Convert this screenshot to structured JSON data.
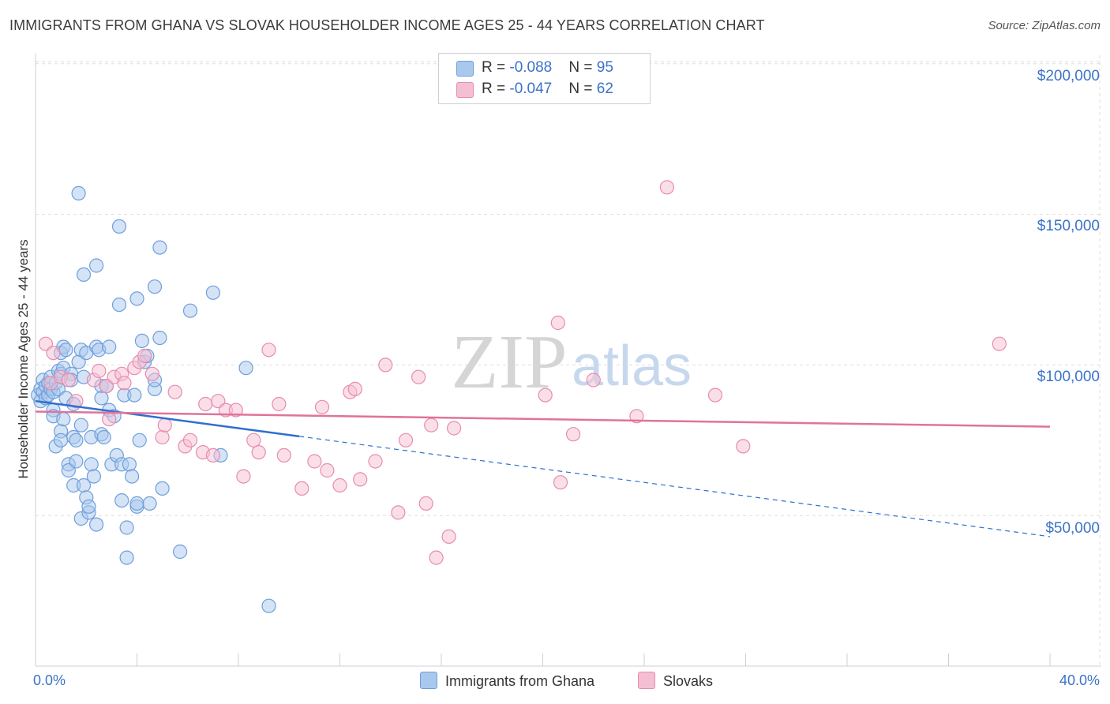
{
  "title": "IMMIGRANTS FROM GHANA VS SLOVAK HOUSEHOLDER INCOME AGES 25 - 44 YEARS CORRELATION CHART",
  "source": "Source: ZipAtlas.com",
  "watermark": {
    "zip": "ZIP",
    "atlas": "atlas"
  },
  "legend_top": {
    "rows": [
      {
        "r_label": "R = ",
        "r_value": "-0.088",
        "n_label": "N = ",
        "n_value": "95"
      },
      {
        "r_label": "R = ",
        "r_value": "-0.047",
        "n_label": "N = ",
        "n_value": "62"
      }
    ]
  },
  "legend_bottom": {
    "series1": "Immigrants from Ghana",
    "series2": "Slovaks"
  },
  "colors": {
    "blue_fill": "#a9c8ee",
    "blue_stroke": "#6f9fdb",
    "blue_line": "#2e6fd0",
    "pink_fill": "#f5bfd3",
    "pink_stroke": "#e88bae",
    "pink_line": "#e0739b",
    "tick_text": "#3b73c8",
    "grid": "#dddddd"
  },
  "chart_data": {
    "type": "scatter",
    "title": "IMMIGRANTS FROM GHANA VS SLOVAK HOUSEHOLDER INCOME AGES 25 - 44 YEARS CORRELATION CHART",
    "xlabel": "",
    "ylabel": "Householder Income Ages 25 - 44 years",
    "xlim": [
      0,
      40
    ],
    "ylim": [
      0,
      210000
    ],
    "x_tick_labels": [
      "0.0%",
      "40.0%"
    ],
    "y_ticks": [
      50000,
      100000,
      150000,
      200000
    ],
    "y_tick_labels": [
      "$50,000",
      "$100,000",
      "$150,000",
      "$200,000"
    ],
    "grid": true,
    "series": [
      {
        "name": "Immigrants from Ghana",
        "r": -0.088,
        "n": 95,
        "trend": {
          "x": [
            0,
            40
          ],
          "y": [
            88000,
            43000
          ],
          "solid_until_x": 10.4
        },
        "points": [
          [
            0.1,
            90000
          ],
          [
            0.2,
            92000
          ],
          [
            0.2,
            88000
          ],
          [
            0.3,
            95000
          ],
          [
            0.3,
            91000
          ],
          [
            0.4,
            93000
          ],
          [
            0.4,
            89000
          ],
          [
            0.5,
            94000
          ],
          [
            0.5,
            90000
          ],
          [
            0.6,
            92000
          ],
          [
            0.6,
            96000
          ],
          [
            0.7,
            91000
          ],
          [
            0.7,
            85000
          ],
          [
            0.7,
            83000
          ],
          [
            0.8,
            73000
          ],
          [
            0.8,
            94000
          ],
          [
            0.9,
            98000
          ],
          [
            0.9,
            92000
          ],
          [
            1.0,
            104000
          ],
          [
            1.0,
            97000
          ],
          [
            1.0,
            78000
          ],
          [
            1.0,
            75000
          ],
          [
            1.1,
            106000
          ],
          [
            1.1,
            99000
          ],
          [
            1.1,
            82000
          ],
          [
            1.2,
            105000
          ],
          [
            1.2,
            89000
          ],
          [
            1.3,
            67000
          ],
          [
            1.3,
            65000
          ],
          [
            1.4,
            97000
          ],
          [
            1.4,
            95000
          ],
          [
            1.5,
            87000
          ],
          [
            1.5,
            76000
          ],
          [
            1.5,
            60000
          ],
          [
            1.6,
            75000
          ],
          [
            1.6,
            68000
          ],
          [
            1.7,
            101000
          ],
          [
            1.7,
            157000
          ],
          [
            1.8,
            105000
          ],
          [
            1.8,
            80000
          ],
          [
            1.8,
            49000
          ],
          [
            1.9,
            130000
          ],
          [
            1.9,
            96000
          ],
          [
            1.9,
            60000
          ],
          [
            2.0,
            104000
          ],
          [
            2.0,
            56000
          ],
          [
            2.1,
            51000
          ],
          [
            2.1,
            53000
          ],
          [
            2.2,
            76000
          ],
          [
            2.2,
            67000
          ],
          [
            2.3,
            63000
          ],
          [
            2.4,
            106000
          ],
          [
            2.4,
            133000
          ],
          [
            2.4,
            47000
          ],
          [
            2.5,
            105000
          ],
          [
            2.6,
            93000
          ],
          [
            2.6,
            89000
          ],
          [
            2.6,
            77000
          ],
          [
            2.7,
            76000
          ],
          [
            2.8,
            93000
          ],
          [
            2.9,
            106000
          ],
          [
            2.9,
            85000
          ],
          [
            3.0,
            67000
          ],
          [
            3.1,
            83000
          ],
          [
            3.2,
            70000
          ],
          [
            3.3,
            146000
          ],
          [
            3.3,
            120000
          ],
          [
            3.4,
            55000
          ],
          [
            3.4,
            67000
          ],
          [
            3.5,
            90000
          ],
          [
            3.6,
            46000
          ],
          [
            3.6,
            36000
          ],
          [
            3.7,
            67000
          ],
          [
            3.8,
            63000
          ],
          [
            3.9,
            90000
          ],
          [
            4.0,
            53000
          ],
          [
            4.0,
            54000
          ],
          [
            4.0,
            122000
          ],
          [
            4.1,
            75000
          ],
          [
            4.2,
            108000
          ],
          [
            4.3,
            101000
          ],
          [
            4.4,
            103000
          ],
          [
            4.5,
            54000
          ],
          [
            4.7,
            126000
          ],
          [
            4.7,
            92000
          ],
          [
            4.7,
            95000
          ],
          [
            4.9,
            139000
          ],
          [
            4.9,
            109000
          ],
          [
            5.0,
            59000
          ],
          [
            5.7,
            38000
          ],
          [
            6.1,
            118000
          ],
          [
            7.0,
            124000
          ],
          [
            7.3,
            70000
          ],
          [
            8.3,
            99000
          ],
          [
            9.2,
            20000
          ]
        ]
      },
      {
        "name": "Slovaks",
        "r": -0.047,
        "n": 62,
        "trend": {
          "x": [
            0,
            40
          ],
          "y": [
            84500,
            79500
          ],
          "solid_until_x": 40
        },
        "points": [
          [
            0.4,
            107000
          ],
          [
            0.6,
            94000
          ],
          [
            0.7,
            104000
          ],
          [
            1.0,
            96000
          ],
          [
            1.3,
            95000
          ],
          [
            1.6,
            88000
          ],
          [
            2.3,
            95000
          ],
          [
            2.5,
            98000
          ],
          [
            2.8,
            93000
          ],
          [
            2.9,
            82000
          ],
          [
            3.1,
            96000
          ],
          [
            3.4,
            97000
          ],
          [
            3.5,
            94000
          ],
          [
            3.9,
            99000
          ],
          [
            4.1,
            101000
          ],
          [
            4.3,
            103000
          ],
          [
            4.6,
            97000
          ],
          [
            5.0,
            76000
          ],
          [
            5.1,
            80000
          ],
          [
            5.5,
            91000
          ],
          [
            5.9,
            73000
          ],
          [
            6.1,
            75000
          ],
          [
            6.6,
            71000
          ],
          [
            6.7,
            87000
          ],
          [
            7.0,
            70000
          ],
          [
            7.2,
            88000
          ],
          [
            7.5,
            85000
          ],
          [
            7.9,
            85000
          ],
          [
            8.2,
            63000
          ],
          [
            8.6,
            75000
          ],
          [
            8.8,
            71000
          ],
          [
            9.2,
            105000
          ],
          [
            9.6,
            87000
          ],
          [
            9.8,
            70000
          ],
          [
            10.5,
            59000
          ],
          [
            11.0,
            68000
          ],
          [
            11.3,
            86000
          ],
          [
            11.5,
            65000
          ],
          [
            12.0,
            60000
          ],
          [
            12.4,
            91000
          ],
          [
            12.6,
            92000
          ],
          [
            12.8,
            62000
          ],
          [
            13.4,
            68000
          ],
          [
            13.8,
            100000
          ],
          [
            14.3,
            51000
          ],
          [
            14.6,
            75000
          ],
          [
            15.1,
            96000
          ],
          [
            15.4,
            54000
          ],
          [
            15.6,
            80000
          ],
          [
            15.8,
            36000
          ],
          [
            16.3,
            43000
          ],
          [
            16.5,
            79000
          ],
          [
            20.1,
            90000
          ],
          [
            20.6,
            114000
          ],
          [
            20.7,
            61000
          ],
          [
            21.2,
            77000
          ],
          [
            23.7,
            83000
          ],
          [
            24.9,
            159000
          ],
          [
            26.8,
            90000
          ],
          [
            27.9,
            73000
          ],
          [
            38.0,
            107000
          ],
          [
            22.0,
            95000
          ]
        ]
      }
    ]
  }
}
